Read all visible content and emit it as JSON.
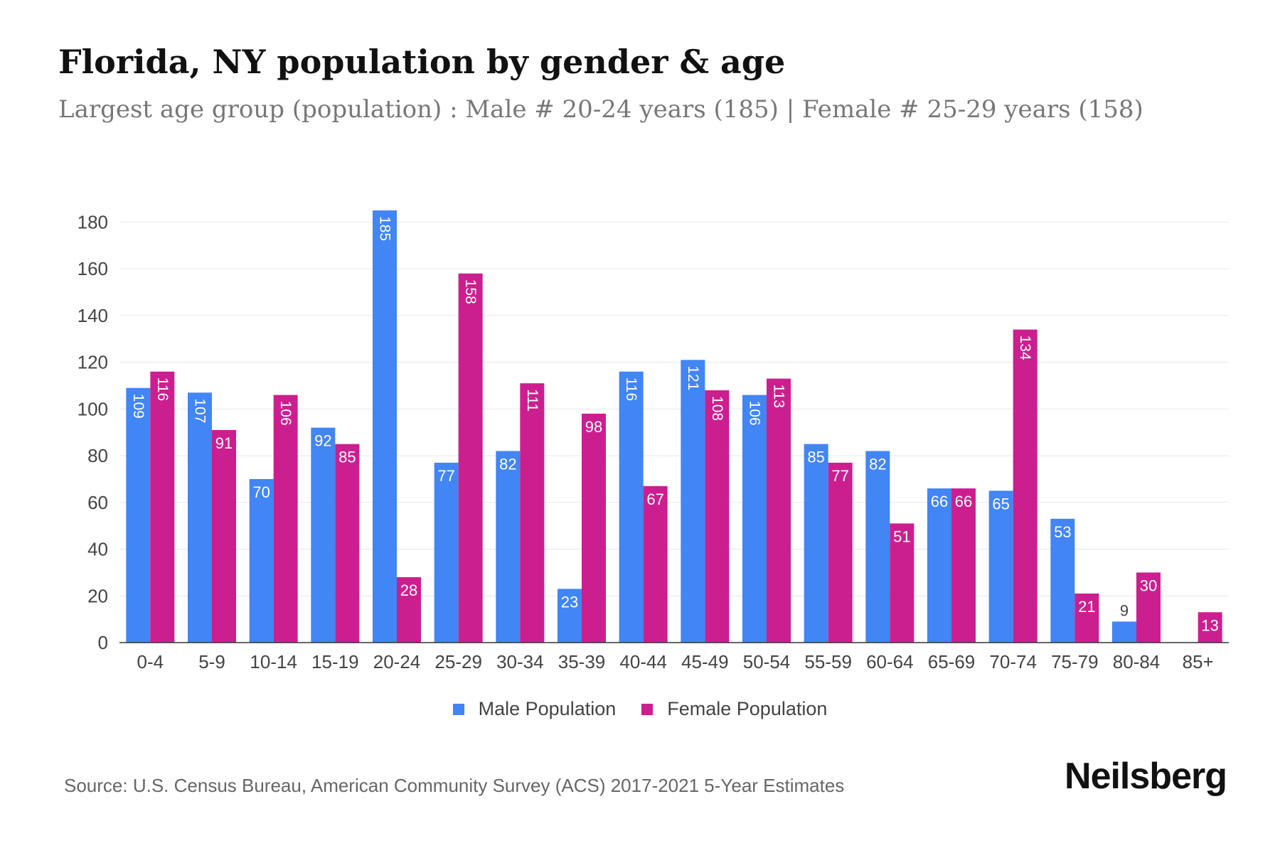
{
  "title": "Florida, NY population by gender & age",
  "subtitle": "Largest age group (population) : Male # 20-24 years (185) | Female # 25-29 years (158)",
  "chart_data": {
    "type": "bar",
    "categories": [
      "0-4",
      "5-9",
      "10-14",
      "15-19",
      "20-24",
      "25-29",
      "30-34",
      "35-39",
      "40-44",
      "45-49",
      "50-54",
      "55-59",
      "60-64",
      "65-69",
      "70-74",
      "75-79",
      "80-84",
      "85+"
    ],
    "series": [
      {
        "name": "Male Population",
        "color": "#4285f4",
        "values": [
          109,
          107,
          70,
          92,
          185,
          77,
          82,
          23,
          116,
          121,
          106,
          85,
          82,
          66,
          65,
          53,
          9,
          0
        ]
      },
      {
        "name": "Female Population",
        "color": "#cc1f8f",
        "values": [
          116,
          91,
          106,
          85,
          28,
          158,
          111,
          98,
          67,
          108,
          113,
          77,
          51,
          66,
          134,
          21,
          30,
          13
        ]
      }
    ],
    "yticks": [
      0,
      20,
      40,
      60,
      80,
      100,
      120,
      140,
      160,
      180
    ],
    "ylim": [
      0,
      185
    ],
    "xlabel": "",
    "ylabel": "",
    "grid": true,
    "legend": "bottom-center"
  },
  "legend": {
    "male_label": "Male Population",
    "female_label": "Female Population",
    "male_color": "#4285f4",
    "female_color": "#cc1f8f"
  },
  "source": "Source: U.S. Census Bureau, American Community Survey (ACS) 2017-2021 5-Year Estimates",
  "brand": "Neilsberg"
}
